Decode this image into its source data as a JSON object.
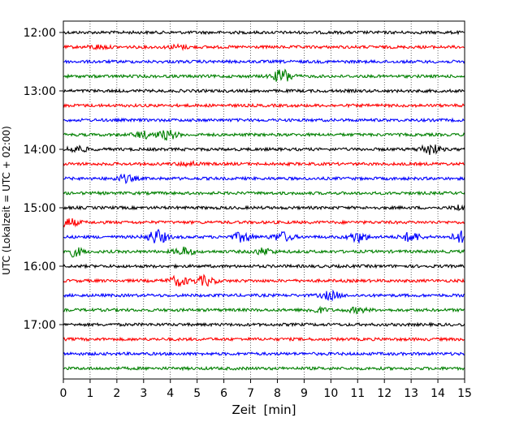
{
  "chart_data": {
    "type": "line",
    "title": "",
    "xlabel": "Zeit  [min]",
    "ylabel": "UTC (Lokalzeit = UTC + 02:00)",
    "xlim": [
      0,
      15
    ],
    "x_ticks": [
      "0",
      "1",
      "2",
      "3",
      "4",
      "5",
      "6",
      "7",
      "8",
      "9",
      "10",
      "11",
      "12",
      "13",
      "14",
      "15"
    ],
    "y_ticks": [
      "12:00",
      "13:00",
      "14:00",
      "15:00",
      "16:00",
      "17:00"
    ],
    "y_tick_rows": [
      0,
      4,
      8,
      12,
      16,
      20
    ],
    "grid": "vertical-dotted",
    "trace_interval_min": 15,
    "traces_start": "12:00",
    "trace_count": 24,
    "trace_colors": [
      "#000000",
      "#ff0000",
      "#0000ff",
      "#008000"
    ],
    "traces": [
      {
        "start": "12:00",
        "color": "#000000",
        "events": []
      },
      {
        "start": "12:15",
        "color": "#ff0000",
        "events": [
          {
            "t": 1.3,
            "amp": 0.12
          },
          {
            "t": 4.3,
            "amp": 0.12
          }
        ]
      },
      {
        "start": "12:30",
        "color": "#0000ff",
        "events": []
      },
      {
        "start": "12:45",
        "color": "#008000",
        "events": [
          {
            "t": 8.2,
            "amp": 0.45
          }
        ]
      },
      {
        "start": "13:00",
        "color": "#000000",
        "events": []
      },
      {
        "start": "13:15",
        "color": "#ff0000",
        "events": []
      },
      {
        "start": "13:30",
        "color": "#0000ff",
        "events": []
      },
      {
        "start": "13:45",
        "color": "#008000",
        "events": [
          {
            "t": 3.0,
            "amp": 0.2
          },
          {
            "t": 3.9,
            "amp": 0.3
          }
        ]
      },
      {
        "start": "14:00",
        "color": "#000000",
        "events": [
          {
            "t": 0.5,
            "amp": 0.22
          },
          {
            "t": 13.7,
            "amp": 0.35
          }
        ]
      },
      {
        "start": "14:15",
        "color": "#ff0000",
        "events": [
          {
            "t": 4.7,
            "amp": 0.12
          }
        ]
      },
      {
        "start": "14:30",
        "color": "#0000ff",
        "events": [
          {
            "t": 2.3,
            "amp": 0.22
          }
        ]
      },
      {
        "start": "14:45",
        "color": "#008000",
        "events": []
      },
      {
        "start": "15:00",
        "color": "#000000",
        "events": [
          {
            "t": 15.0,
            "amp": 0.25
          }
        ]
      },
      {
        "start": "15:15",
        "color": "#ff0000",
        "events": [
          {
            "t": 0.2,
            "amp": 0.25
          }
        ]
      },
      {
        "start": "15:30",
        "color": "#0000ff",
        "events": [
          {
            "t": 3.5,
            "amp": 0.45
          },
          {
            "t": 6.7,
            "amp": 0.3
          },
          {
            "t": 8.2,
            "amp": 0.3
          },
          {
            "t": 11.0,
            "amp": 0.3
          },
          {
            "t": 13.0,
            "amp": 0.3
          },
          {
            "t": 14.9,
            "amp": 0.35
          }
        ]
      },
      {
        "start": "15:45",
        "color": "#008000",
        "events": [
          {
            "t": 0.4,
            "amp": 0.28
          },
          {
            "t": 4.5,
            "amp": 0.25
          },
          {
            "t": 7.5,
            "amp": 0.2
          }
        ]
      },
      {
        "start": "16:00",
        "color": "#000000",
        "events": []
      },
      {
        "start": "16:15",
        "color": "#ff0000",
        "events": [
          {
            "t": 4.3,
            "amp": 0.3
          },
          {
            "t": 5.3,
            "amp": 0.3
          }
        ]
      },
      {
        "start": "16:30",
        "color": "#0000ff",
        "events": [
          {
            "t": 10.0,
            "amp": 0.25
          }
        ]
      },
      {
        "start": "16:45",
        "color": "#008000",
        "events": [
          {
            "t": 9.5,
            "amp": 0.15
          },
          {
            "t": 11.0,
            "amp": 0.15
          }
        ]
      },
      {
        "start": "17:00",
        "color": "#000000",
        "events": []
      },
      {
        "start": "17:15",
        "color": "#ff0000",
        "events": []
      },
      {
        "start": "17:30",
        "color": "#0000ff",
        "events": []
      },
      {
        "start": "17:45",
        "color": "#008000",
        "events": []
      }
    ]
  }
}
